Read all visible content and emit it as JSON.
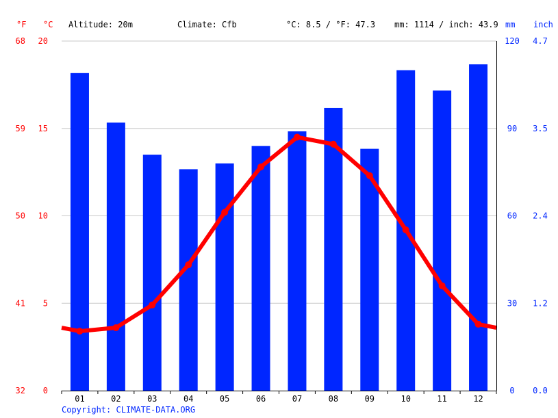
{
  "header": {
    "unit_f": "°F",
    "unit_c": "°C",
    "altitude": "Altitude: 20m",
    "climate": "Climate: Cfb",
    "avg_temp": "°C: 8.5 / °F: 47.3",
    "precip": "mm: 1114 / inch: 43.9",
    "unit_mm": "mm",
    "unit_inch": "inch"
  },
  "copyright": "Copyright: CLIMATE-DATA.ORG",
  "colors": {
    "temp": "#ff0000",
    "precip": "#0026ff",
    "grid": "#c8c8c8"
  },
  "chart_data": {
    "type": "bar+line",
    "categories": [
      "01",
      "02",
      "03",
      "04",
      "05",
      "06",
      "07",
      "08",
      "09",
      "10",
      "11",
      "12"
    ],
    "series": [
      {
        "kind": "bar",
        "unit": "mm",
        "values": [
          109,
          92,
          81,
          76,
          78,
          84,
          89,
          97,
          83,
          110,
          103,
          112
        ]
      },
      {
        "kind": "line",
        "unit": "°C",
        "values": [
          3.4,
          3.6,
          4.9,
          7.2,
          10.2,
          12.8,
          14.5,
          14.1,
          12.3,
          9.2,
          6.0,
          3.8
        ]
      }
    ],
    "left_axis_c": {
      "ylim": [
        0,
        20
      ],
      "ticks": [
        "0",
        "5",
        "10",
        "15",
        "20"
      ]
    },
    "left_axis_f": {
      "ticks": [
        "32",
        "41",
        "50",
        "59",
        "68"
      ]
    },
    "right_axis_mm": {
      "ylim": [
        0,
        120
      ],
      "ticks": [
        "0",
        "30",
        "60",
        "90",
        "120"
      ]
    },
    "right_axis_inch": {
      "ticks": [
        "0.0",
        "1.2",
        "2.4",
        "3.5",
        "4.7"
      ]
    },
    "grid": true
  }
}
